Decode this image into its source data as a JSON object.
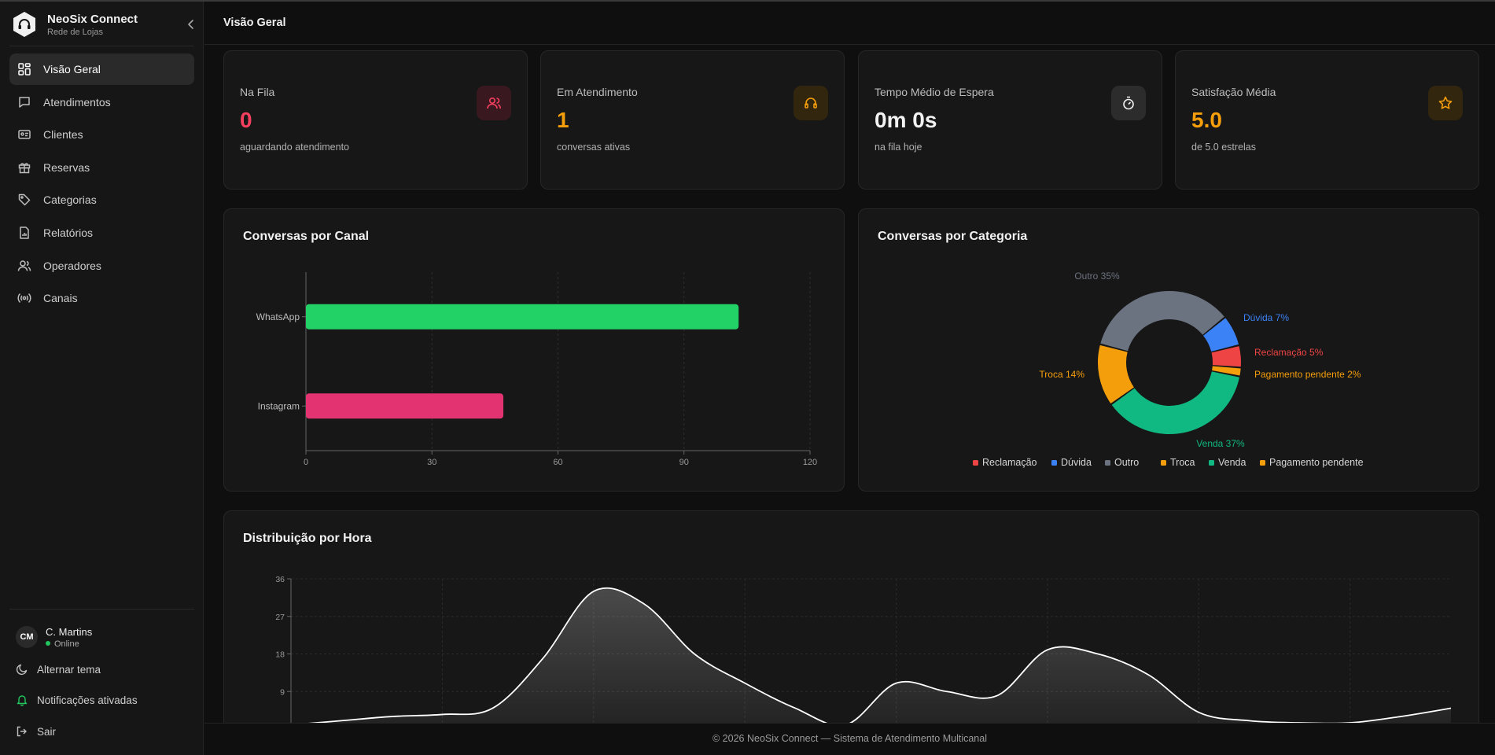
{
  "brand": {
    "name": "NeoSix Connect",
    "subtitle": "Rede de Lojas"
  },
  "nav": {
    "items": [
      {
        "label": "Visão Geral",
        "icon": "dashboard-icon",
        "active": true
      },
      {
        "label": "Atendimentos",
        "icon": "message-icon"
      },
      {
        "label": "Clientes",
        "icon": "id-card-icon"
      },
      {
        "label": "Reservas",
        "icon": "gift-icon"
      },
      {
        "label": "Categorias",
        "icon": "tag-icon"
      },
      {
        "label": "Relatórios",
        "icon": "report-icon"
      },
      {
        "label": "Operadores",
        "icon": "users-icon"
      },
      {
        "label": "Canais",
        "icon": "broadcast-icon"
      }
    ]
  },
  "user": {
    "initials": "CM",
    "name": "C. Martins",
    "status": "Online"
  },
  "sidebar_actions": {
    "theme": "Alternar tema",
    "notifications": "Notificações ativadas",
    "logout": "Sair"
  },
  "header": {
    "title": "Visão Geral"
  },
  "stats": [
    {
      "label": "Na Fila",
      "value": "0",
      "sub": "aguardando atendimento",
      "color": "#f43f5e",
      "icon": "users-icon"
    },
    {
      "label": "Em Atendimento",
      "value": "1",
      "sub": "conversas ativas",
      "color": "#f59e0b",
      "icon": "headset-icon"
    },
    {
      "label": "Tempo Médio de Espera",
      "value": "0m 0s",
      "sub": "na fila hoje",
      "color": "#f2f2f2",
      "icon": "stopwatch-icon"
    },
    {
      "label": "Satisfação Média",
      "value": "5.0",
      "sub": "de 5.0 estrelas",
      "color": "#f59e0b",
      "icon": "star-icon"
    }
  ],
  "panels": {
    "channel_title": "Conversas por Canal",
    "category_title": "Conversas por Categoria",
    "hourly_title": "Distribuição por Hora"
  },
  "footer": {
    "text": "© 2026 NeoSix Connect — Sistema de Atendimento Multicanal"
  },
  "chart_data": [
    {
      "type": "bar",
      "orientation": "horizontal",
      "title": "Conversas por Canal",
      "categories": [
        "WhatsApp",
        "Instagram"
      ],
      "values": [
        103,
        47
      ],
      "colors": [
        "#22d266",
        "#e33371"
      ],
      "xlim": [
        0,
        120
      ],
      "xticks": [
        0,
        30,
        60,
        90,
        120
      ],
      "grid": true
    },
    {
      "type": "pie",
      "variant": "donut",
      "title": "Conversas por Categoria",
      "slices": [
        {
          "name": "Reclamação",
          "value": 5,
          "label": "Reclamação 5%",
          "color": "#ef4444"
        },
        {
          "name": "Dúvida",
          "value": 7,
          "label": "Dúvida 7%",
          "color": "#3b82f6"
        },
        {
          "name": "Outro",
          "value": 35,
          "label": "Outro 35%",
          "color": "#6b7280"
        },
        {
          "name": "Troca",
          "value": 14,
          "label": "Troca 14%",
          "color": "#f59e0b"
        },
        {
          "name": "Venda",
          "value": 37,
          "label": "Venda 37%",
          "color": "#10b981"
        },
        {
          "name": "Pagamento pendente",
          "value": 2,
          "label": "Pagamento pendente 2%",
          "color": "#f59e0b"
        }
      ],
      "legend": "bottom"
    },
    {
      "type": "area",
      "title": "Distribuição por Hora",
      "x": [
        0,
        1,
        2,
        3,
        4,
        5,
        6,
        7,
        8,
        9,
        10,
        11,
        12,
        13,
        14,
        15,
        16,
        17,
        18,
        19,
        20,
        21,
        22,
        23
      ],
      "values": [
        1,
        2,
        3,
        3.5,
        5,
        17,
        33,
        30,
        18,
        11,
        5,
        1,
        11,
        9,
        8,
        19,
        18,
        13,
        4,
        2,
        1.5,
        1.5,
        3,
        5
      ],
      "ylim": [
        0,
        36
      ],
      "yticks": [
        9,
        18,
        27,
        36
      ],
      "color": "#ffffff",
      "grid": true
    }
  ]
}
